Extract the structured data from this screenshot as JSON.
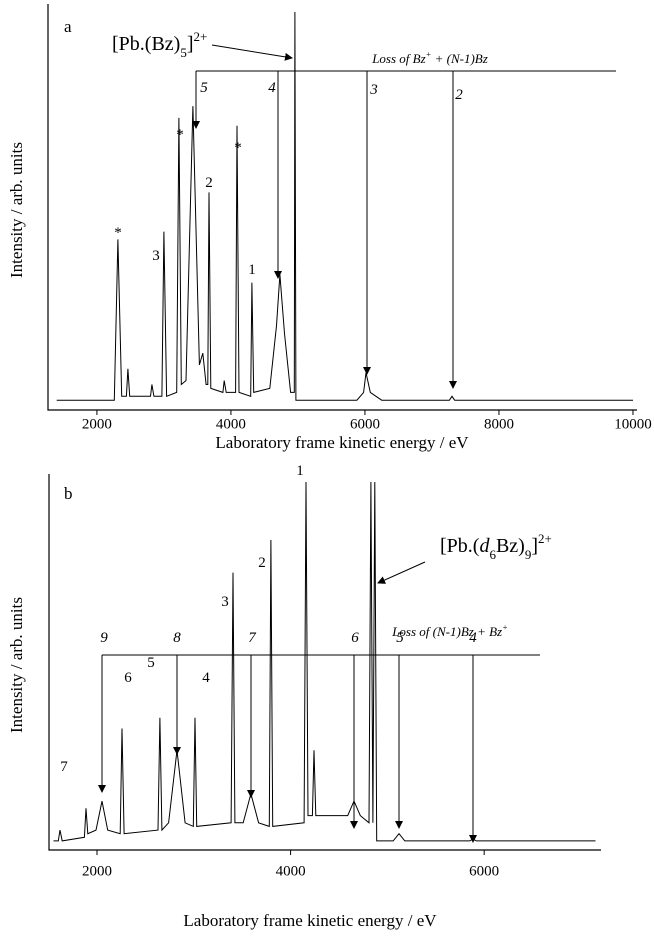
{
  "chart_data": [
    {
      "type": "line",
      "panel_label": "a",
      "x_label": "Laboratory frame kinetic energy / eV",
      "y_label": "Intensity / arb. units",
      "formula": [
        {
          "text": "[Pb.(Bz)",
          "style": "normal"
        },
        {
          "text": "5",
          "style": "sub"
        },
        {
          "text": "]",
          "style": "normal"
        },
        {
          "text": "2+",
          "style": "sup"
        }
      ],
      "loss_text": [
        {
          "text": "Loss of Bz",
          "style": "normal"
        },
        {
          "text": "+",
          "style": "sup"
        },
        {
          "text": " + (N-1)Bz",
          "style": "normal"
        }
      ],
      "peak_labels": [
        "*",
        "3",
        "*",
        "2",
        "*",
        "1"
      ],
      "arrow_labels": [
        "5",
        "4",
        "3",
        "2"
      ],
      "color": "#000000",
      "x": [
        1400,
        2260,
        2313,
        2370,
        2440,
        2463,
        2490,
        2800,
        2820,
        2850,
        2970,
        3000,
        3040,
        3190,
        3224,
        3260,
        3330,
        3433,
        3530,
        3580,
        3630,
        3655,
        3672,
        3700,
        3880,
        3900,
        3930,
        4070,
        4090,
        4120,
        4295,
        4313,
        4340,
        4580,
        4680,
        4731,
        4800,
        4890,
        4945,
        4955,
        4970,
        5880,
        5980,
        6015,
        6080,
        6250,
        7260,
        7299,
        7340,
        10000
      ],
      "values": [
        1,
        1,
        42,
        2,
        2,
        9,
        2,
        2,
        5,
        2,
        2,
        44,
        2,
        3,
        73,
        5,
        6,
        76,
        10,
        13,
        5,
        5,
        54,
        4,
        3,
        6,
        3,
        3,
        71,
        3,
        2,
        31,
        3,
        4,
        20,
        33,
        18,
        3,
        3,
        100,
        1,
        1,
        3,
        8,
        3,
        1,
        1,
        2,
        1,
        1
      ],
      "xlim": [
        1270,
        10060
      ],
      "ylim": [
        -1.5,
        100
      ],
      "xticks": [
        2000,
        4000,
        6000,
        8000,
        10000
      ]
    },
    {
      "type": "line",
      "panel_label": "b",
      "x_label": "Laboratory frame kinetic energy / eV",
      "y_label": "Intensity / arb. units",
      "formula": [
        {
          "text": "[Pb.(",
          "style": "normal"
        },
        {
          "text": "d",
          "style": "italic"
        },
        {
          "text": "6",
          "style": "sub"
        },
        {
          "text": "Bz)",
          "style": "normal"
        },
        {
          "text": "9",
          "style": "sub"
        },
        {
          "text": "]",
          "style": "normal"
        },
        {
          "text": "2+",
          "style": "sup"
        }
      ],
      "loss_text": [
        {
          "text": "Loss of (N-1)Bz + Bz",
          "style": "normal"
        },
        {
          "text": "+",
          "style": "sup"
        }
      ],
      "peak_labels": [
        "7",
        "6",
        "5",
        "4",
        "3",
        "2",
        "1"
      ],
      "arrow_labels": [
        "9",
        "8",
        "7",
        "6",
        "5",
        "4"
      ],
      "color": "#000000",
      "x": [
        1550,
        1600,
        1618,
        1640,
        1870,
        1886,
        1905,
        1990,
        2052,
        2110,
        2240,
        2258,
        2280,
        2630,
        2650,
        2670,
        2740,
        2826,
        2910,
        2995,
        3012,
        3030,
        3385,
        3405,
        3425,
        3510,
        3590,
        3670,
        3780,
        3797,
        3815,
        4140,
        4159,
        4180,
        4225,
        4242,
        4260,
        4590,
        4655,
        4720,
        4810,
        4830,
        4850,
        4870,
        4890,
        5060,
        5120,
        5180,
        5850,
        5884,
        5920,
        7150
      ],
      "values": [
        1,
        1,
        4,
        1,
        2,
        10,
        3,
        4,
        12,
        4,
        3,
        32,
        3,
        4,
        35,
        4,
        6,
        26,
        6,
        5,
        35,
        5,
        6,
        75,
        6,
        6,
        14,
        6,
        5,
        84,
        5,
        6,
        100,
        8,
        8,
        26,
        8,
        8,
        12,
        8,
        6,
        100,
        6,
        100,
        1,
        1,
        3,
        1,
        1,
        1.5,
        1,
        1
      ],
      "xlim": [
        1504,
        7207
      ],
      "ylim": [
        -1.5,
        100
      ],
      "xticks": [
        2000,
        4000,
        6000
      ]
    }
  ]
}
